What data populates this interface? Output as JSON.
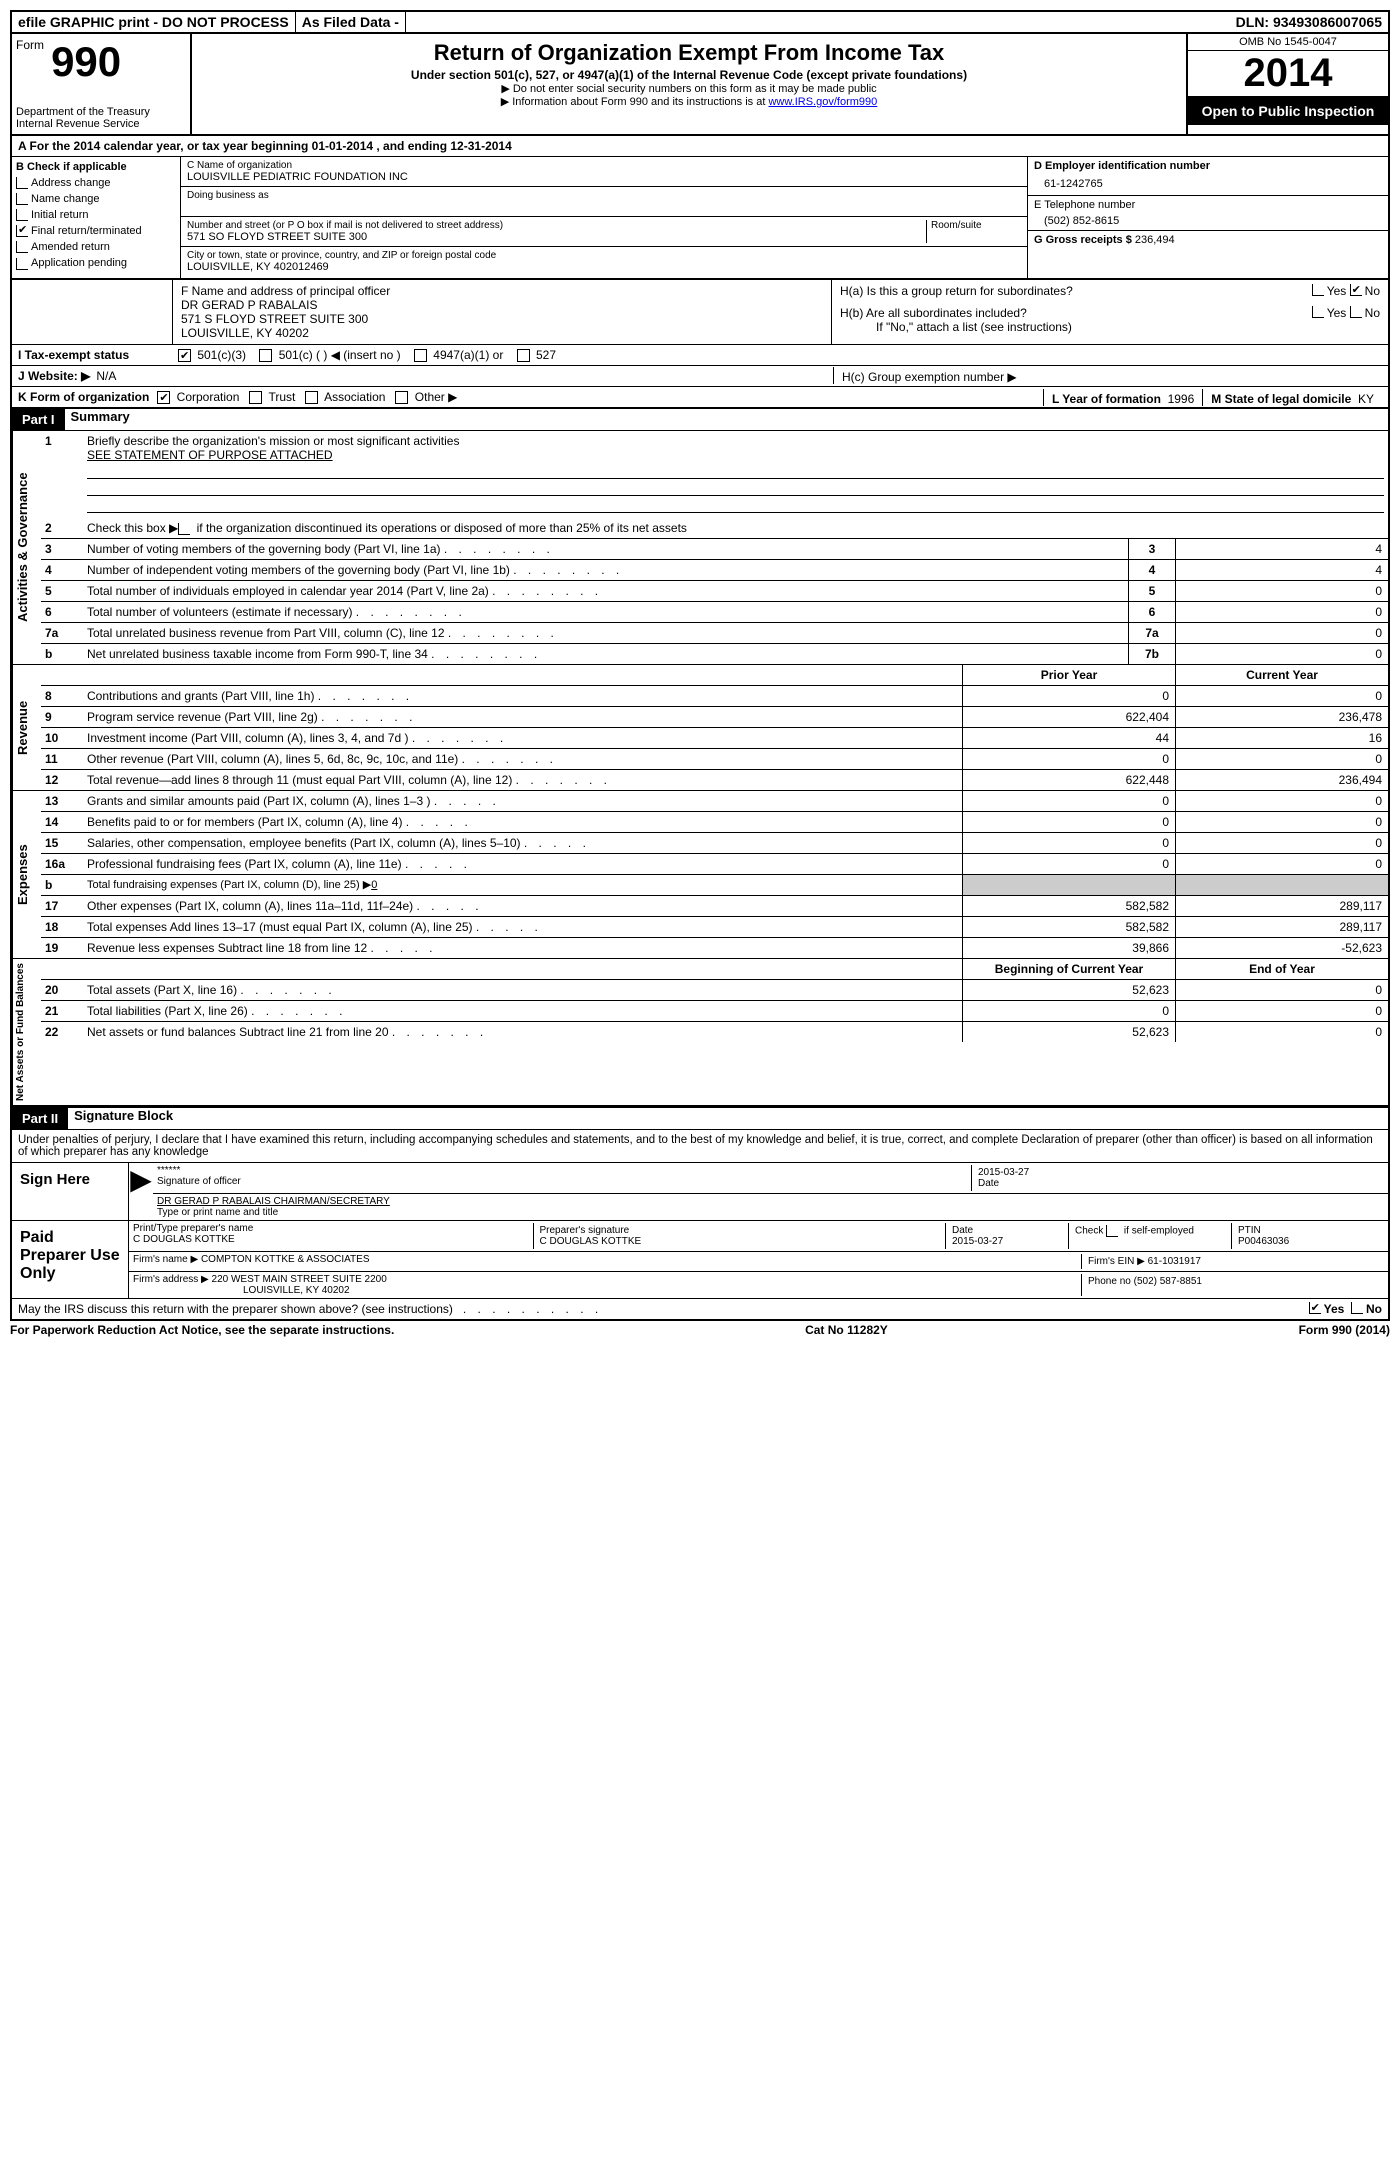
{
  "topbar": {
    "efile": "efile GRAPHIC print - DO NOT PROCESS",
    "asfiled": "As Filed Data -",
    "dln_label": "DLN:",
    "dln": "93493086007065"
  },
  "header": {
    "form_word": "Form",
    "form_num": "990",
    "dept": "Department of the Treasury",
    "irs": "Internal Revenue Service",
    "title": "Return of Organization Exempt From Income Tax",
    "sub": "Under section 501(c), 527, or 4947(a)(1) of the Internal Revenue Code (except private foundations)",
    "note1": "▶ Do not enter social security numbers on this form as it may be made public",
    "note2_pre": "▶ Information about Form 990 and its instructions is at ",
    "note2_link": "www.IRS.gov/form990",
    "omb": "OMB No 1545-0047",
    "year": "2014",
    "open": "Open to Public Inspection"
  },
  "lineA": {
    "label": "A  For the 2014 calendar year, or tax year beginning 01-01-2014    , and ending 12-31-2014"
  },
  "checkB": {
    "header": "B  Check if applicable",
    "items": [
      "Address change",
      "Name change",
      "Initial return",
      "Final return/terminated",
      "Amended return",
      "Application pending"
    ],
    "checked_index": 3
  },
  "orgC": {
    "name_label": "C Name of organization",
    "name": "LOUISVILLE PEDIATRIC FOUNDATION INC",
    "dba_label": "Doing business as",
    "street_label": "Number and street (or P O  box if mail is not delivered to street address)",
    "room_label": "Room/suite",
    "street": "571 SO FLOYD STREET SUITE 300",
    "city_label": "City or town, state or province, country, and ZIP or foreign postal code",
    "city": "LOUISVILLE, KY  402012469"
  },
  "rightD": {
    "ein_label": "D Employer identification number",
    "ein": "61-1242765",
    "phone_label": "E Telephone number",
    "phone": "(502) 852-8615",
    "gross_label": "G Gross receipts $",
    "gross": "236,494"
  },
  "officerF": {
    "label": "F   Name and address of principal officer",
    "name": "DR GERAD P RABALAIS",
    "street": "571 S FLOYD STREET SUITE 300",
    "city": "LOUISVILLE, KY  40202"
  },
  "H": {
    "a_label": "H(a)  Is this a group return for subordinates?",
    "b_label": "H(b)  Are all subordinates included?",
    "b_note": "If \"No,\" attach a list  (see instructions)",
    "c_label": "H(c)  Group exemption number ▶",
    "yes": "Yes",
    "no": "No"
  },
  "I": {
    "label": "I   Tax-exempt status",
    "opts": [
      "501(c)(3)",
      "501(c) (   ) ◀ (insert no )",
      "4947(a)(1) or",
      "527"
    ]
  },
  "J": {
    "label": "J   Website: ▶",
    "value": "N/A"
  },
  "K": {
    "label": "K Form of organization",
    "opts": [
      "Corporation",
      "Trust",
      "Association",
      "Other ▶"
    ]
  },
  "L": {
    "label": "L Year of formation",
    "value": "1996"
  },
  "M": {
    "label": "M State of legal domicile",
    "value": "KY"
  },
  "partI": {
    "header": "Part I",
    "title": "Summary",
    "q1_label": "Briefly describe the organization's mission or most significant activities",
    "q1_val": "SEE STATEMENT OF PURPOSE ATTACHED",
    "q2": "Check this box ▶     if the organization discontinued its operations or disposed of more than 25% of its net assets",
    "sections": {
      "ag": "Activities & Governance",
      "rev": "Revenue",
      "exp": "Expenses",
      "net": "Net Assets or Fund Balances"
    },
    "lines_ag": [
      {
        "n": "3",
        "d": "Number of voting members of the governing body (Part VI, line 1a)",
        "b": "3",
        "v": "4"
      },
      {
        "n": "4",
        "d": "Number of independent voting members of the governing body (Part VI, line 1b)",
        "b": "4",
        "v": "4"
      },
      {
        "n": "5",
        "d": "Total number of individuals employed in calendar year 2014 (Part V, line 2a)",
        "b": "5",
        "v": "0"
      },
      {
        "n": "6",
        "d": "Total number of volunteers (estimate if necessary)",
        "b": "6",
        "v": "0"
      },
      {
        "n": "7a",
        "d": "Total unrelated business revenue from Part VIII, column (C), line 12",
        "b": "7a",
        "v": "0"
      },
      {
        "n": "b",
        "d": "Net unrelated business taxable income from Form 990-T, line 34",
        "b": "7b",
        "v": "0"
      }
    ],
    "col_headers": {
      "prior": "Prior Year",
      "current": "Current Year",
      "begin": "Beginning of Current Year",
      "end": "End of Year"
    },
    "lines_rev": [
      {
        "n": "8",
        "d": "Contributions and grants (Part VIII, line 1h)",
        "p": "0",
        "c": "0"
      },
      {
        "n": "9",
        "d": "Program service revenue (Part VIII, line 2g)",
        "p": "622,404",
        "c": "236,478"
      },
      {
        "n": "10",
        "d": "Investment income (Part VIII, column (A), lines 3, 4, and 7d )",
        "p": "44",
        "c": "16"
      },
      {
        "n": "11",
        "d": "Other revenue (Part VIII, column (A), lines 5, 6d, 8c, 9c, 10c, and 11e)",
        "p": "0",
        "c": "0"
      },
      {
        "n": "12",
        "d": "Total revenue—add lines 8 through 11 (must equal Part VIII, column (A), line 12)",
        "p": "622,448",
        "c": "236,494"
      }
    ],
    "lines_exp": [
      {
        "n": "13",
        "d": "Grants and similar amounts paid (Part IX, column (A), lines 1–3 )",
        "p": "0",
        "c": "0"
      },
      {
        "n": "14",
        "d": "Benefits paid to or for members (Part IX, column (A), line 4)",
        "p": "0",
        "c": "0"
      },
      {
        "n": "15",
        "d": "Salaries, other compensation, employee benefits (Part IX, column (A), lines 5–10)",
        "p": "0",
        "c": "0"
      },
      {
        "n": "16a",
        "d": "Professional fundraising fees (Part IX, column (A), line 11e)",
        "p": "0",
        "c": "0"
      },
      {
        "n": "b",
        "d": "Total fundraising expenses (Part IX, column (D), line 25) ▶",
        "p": "",
        "c": "",
        "sub": "0"
      },
      {
        "n": "17",
        "d": "Other expenses (Part IX, column (A), lines 11a–11d, 11f–24e)",
        "p": "582,582",
        "c": "289,117"
      },
      {
        "n": "18",
        "d": "Total expenses  Add lines 13–17 (must equal Part IX, column (A), line 25)",
        "p": "582,582",
        "c": "289,117"
      },
      {
        "n": "19",
        "d": "Revenue less expenses  Subtract line 18 from line 12",
        "p": "39,866",
        "c": "-52,623"
      }
    ],
    "lines_net": [
      {
        "n": "20",
        "d": "Total assets (Part X, line 16)",
        "p": "52,623",
        "c": "0"
      },
      {
        "n": "21",
        "d": "Total liabilities (Part X, line 26)",
        "p": "0",
        "c": "0"
      },
      {
        "n": "22",
        "d": "Net assets or fund balances  Subtract line 21 from line 20",
        "p": "52,623",
        "c": "0"
      }
    ]
  },
  "partII": {
    "header": "Part II",
    "title": "Signature Block",
    "penalty": "Under penalties of perjury, I declare that I have examined this return, including accompanying schedules and statements, and to the best of my knowledge and belief, it is true, correct, and complete  Declaration of preparer (other than officer) is based on all information of which preparer has any knowledge",
    "sign_here": "Sign Here",
    "sig_of_officer": "Signature of officer",
    "sig_stars": "******",
    "sig_date": "2015-03-27",
    "date_label": "Date",
    "officer_name": "DR GERAD P RABALAIS CHAIRMAN/SECRETARY",
    "type_name": "Type or print name and title",
    "paid": "Paid Preparer Use Only",
    "prep_name_label": "Print/Type preparer's name",
    "prep_name": "C DOUGLAS KOTTKE",
    "prep_sig_label": "Preparer's signature",
    "prep_sig": "C DOUGLAS KOTTKE",
    "prep_date": "2015-03-27",
    "check_self": "Check       if self-employed",
    "ptin_label": "PTIN",
    "ptin": "P00463036",
    "firm_name_label": "Firm's name     ▶",
    "firm_name": "COMPTON KOTTKE & ASSOCIATES",
    "firm_ein_label": "Firm's EIN ▶",
    "firm_ein": "61-1031917",
    "firm_addr_label": "Firm's address ▶",
    "firm_addr": "220 WEST MAIN STREET SUITE 2200",
    "firm_city": "LOUISVILLE, KY  40202",
    "phone_label": "Phone no",
    "phone": "(502) 587-8851",
    "may_irs": "May the IRS discuss this return with the preparer shown above? (see instructions)",
    "yes": "Yes",
    "no": "No"
  },
  "footer": {
    "paperwork": "For Paperwork Reduction Act Notice, see the separate instructions.",
    "cat": "Cat No 11282Y",
    "form": "Form 990 (2014)"
  }
}
